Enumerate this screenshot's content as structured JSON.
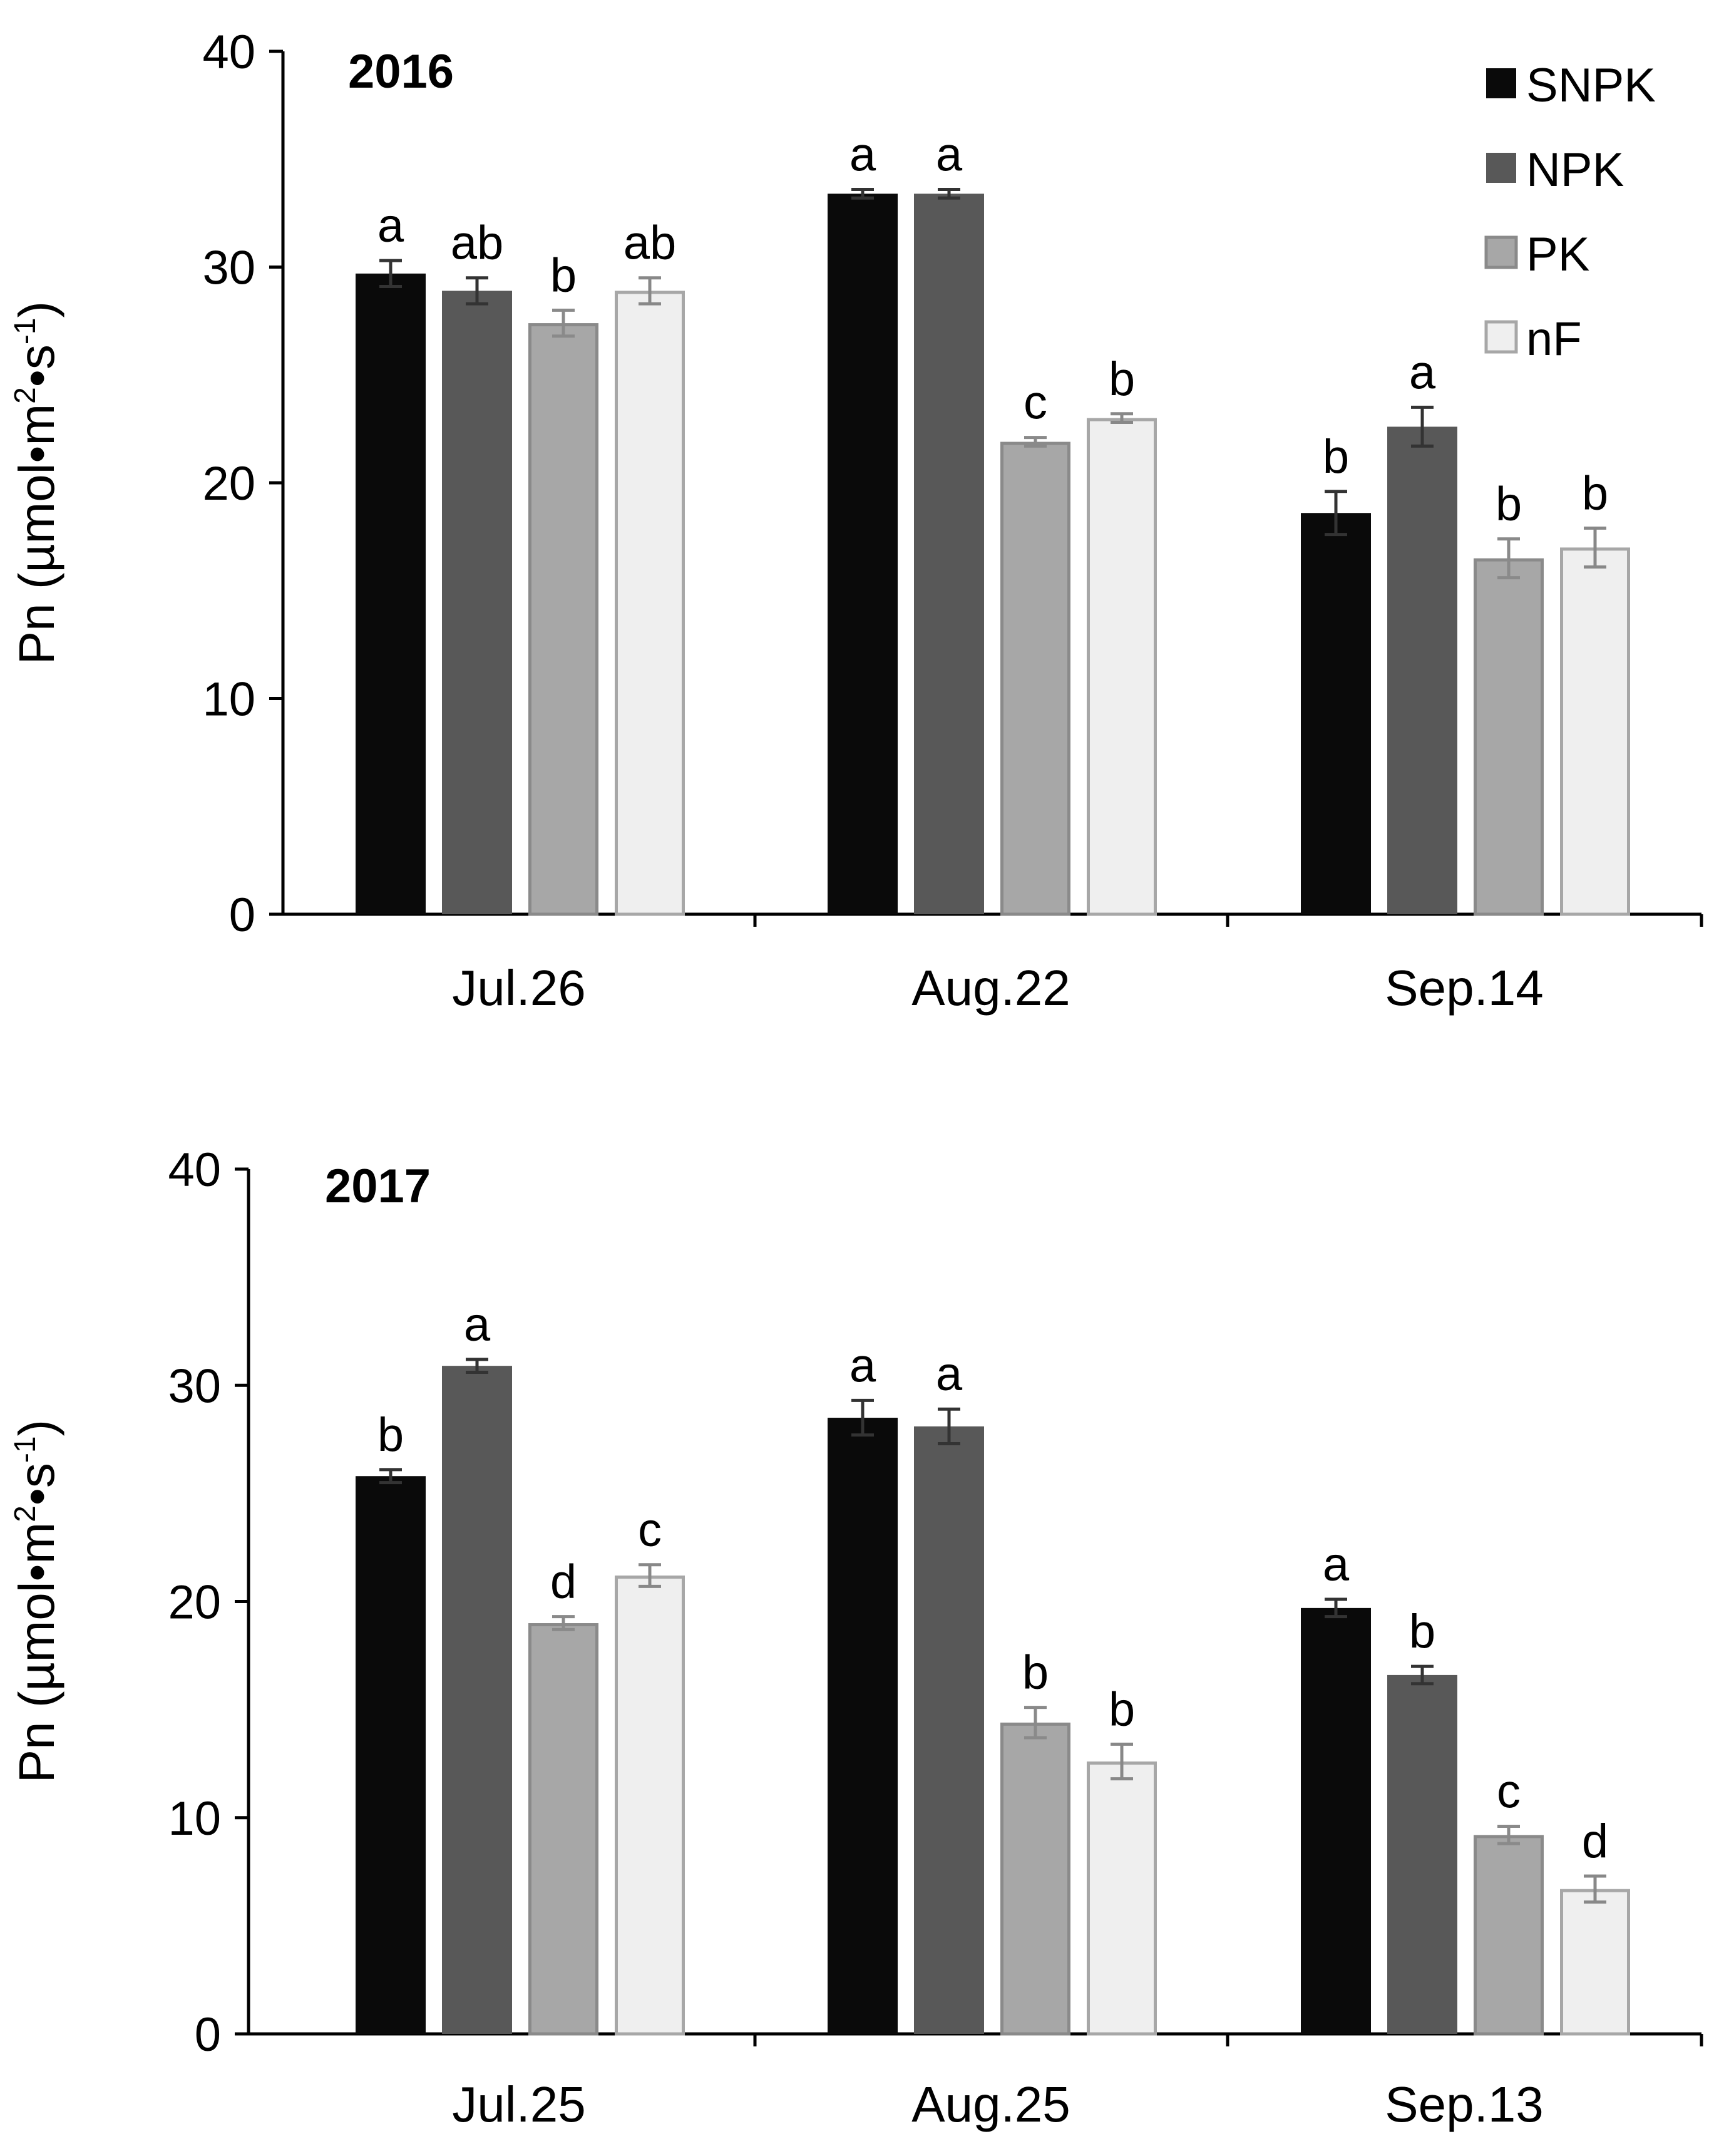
{
  "legend": [
    "SNPK",
    "NPK",
    "PK",
    "nF"
  ],
  "colors": {
    "SNPK": "#0a0a0a",
    "NPK": "#585858",
    "PK": "#a7a7a7",
    "nF": "#efefef",
    "nF_stroke": "#a7a7a7",
    "PK_stroke": "#8a8a8a"
  },
  "chart_data": [
    {
      "type": "bar",
      "title": "2016",
      "xlabel": "",
      "ylabel": {
        "prefix": "Pn (µmol•m",
        "sup1": "2",
        "middle": "•s",
        "sup2": "-1",
        "suffix": ")"
      },
      "ylim": [
        0,
        40
      ],
      "yticks": [
        "0",
        "10",
        "20",
        "30",
        "40"
      ],
      "categories": [
        "Jul.26",
        "Aug.22",
        "Sep.14"
      ],
      "series": [
        {
          "name": "SNPK",
          "values": [
            29.7,
            33.4,
            18.6
          ],
          "errors": [
            0.6,
            0.2,
            1.0
          ],
          "labels": [
            "a",
            "a",
            "b"
          ]
        },
        {
          "name": "NPK",
          "values": [
            28.9,
            33.4,
            22.6
          ],
          "errors": [
            0.6,
            0.2,
            0.9
          ],
          "labels": [
            "ab",
            "a",
            "a"
          ]
        },
        {
          "name": "PK",
          "values": [
            27.4,
            21.9,
            16.5
          ],
          "errors": [
            0.6,
            0.2,
            0.9
          ],
          "labels": [
            "b",
            "c",
            "b"
          ]
        },
        {
          "name": "nF",
          "values": [
            28.9,
            23.0,
            17.0
          ],
          "errors": [
            0.6,
            0.2,
            0.9
          ],
          "labels": [
            "ab",
            "b",
            "b"
          ]
        }
      ]
    },
    {
      "type": "bar",
      "title": "2017",
      "xlabel": "",
      "ylabel": {
        "prefix": "Pn (µmol•m",
        "sup1": "2",
        "middle": "•s",
        "sup2": "-1",
        "suffix": ")"
      },
      "ylim": [
        0,
        40
      ],
      "yticks": [
        "0",
        "10",
        "20",
        "30",
        "40"
      ],
      "categories": [
        "Jul.25",
        "Aug.25",
        "Sep.13"
      ],
      "series": [
        {
          "name": "SNPK",
          "values": [
            25.8,
            28.5,
            19.7
          ],
          "errors": [
            0.3,
            0.8,
            0.4
          ],
          "labels": [
            "b",
            "a",
            "a"
          ]
        },
        {
          "name": "NPK",
          "values": [
            30.9,
            28.1,
            16.6
          ],
          "errors": [
            0.3,
            0.8,
            0.4
          ],
          "labels": [
            "a",
            "a",
            "b"
          ]
        },
        {
          "name": "PK",
          "values": [
            19.0,
            14.4,
            9.2
          ],
          "errors": [
            0.3,
            0.7,
            0.4
          ],
          "labels": [
            "d",
            "b",
            "c"
          ]
        },
        {
          "name": "nF",
          "values": [
            21.2,
            12.6,
            6.7
          ],
          "errors": [
            0.5,
            0.8,
            0.6
          ],
          "labels": [
            "c",
            "b",
            "d"
          ]
        }
      ]
    }
  ]
}
